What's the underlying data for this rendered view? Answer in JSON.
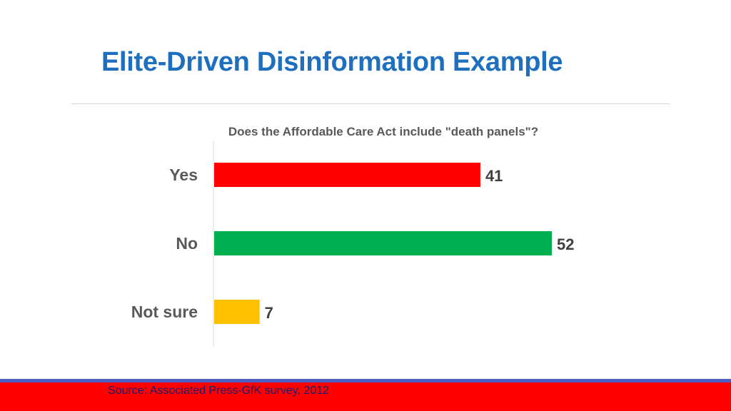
{
  "slide": {
    "title": "Elite-Driven Disinformation Example",
    "source": "Source: Associated Press-GfK survey, 2012"
  },
  "colors": {
    "title": "#1f6fbf",
    "yes": "#ff0000",
    "no": "#00b050",
    "not_sure": "#ffc000",
    "footer_red": "#ff0000",
    "footer_blue": "#4a5fc1"
  },
  "chart_data": {
    "type": "bar",
    "orientation": "horizontal",
    "title": "Does the Affordable Care Act include \"death panels\"?",
    "categories": [
      "Yes",
      "No",
      "Not sure"
    ],
    "values": [
      41,
      52,
      7
    ],
    "colors": [
      "#ff0000",
      "#00b050",
      "#ffc000"
    ],
    "xlim": [
      0,
      52
    ],
    "data_labels": true,
    "grid": false,
    "legend": "none"
  }
}
